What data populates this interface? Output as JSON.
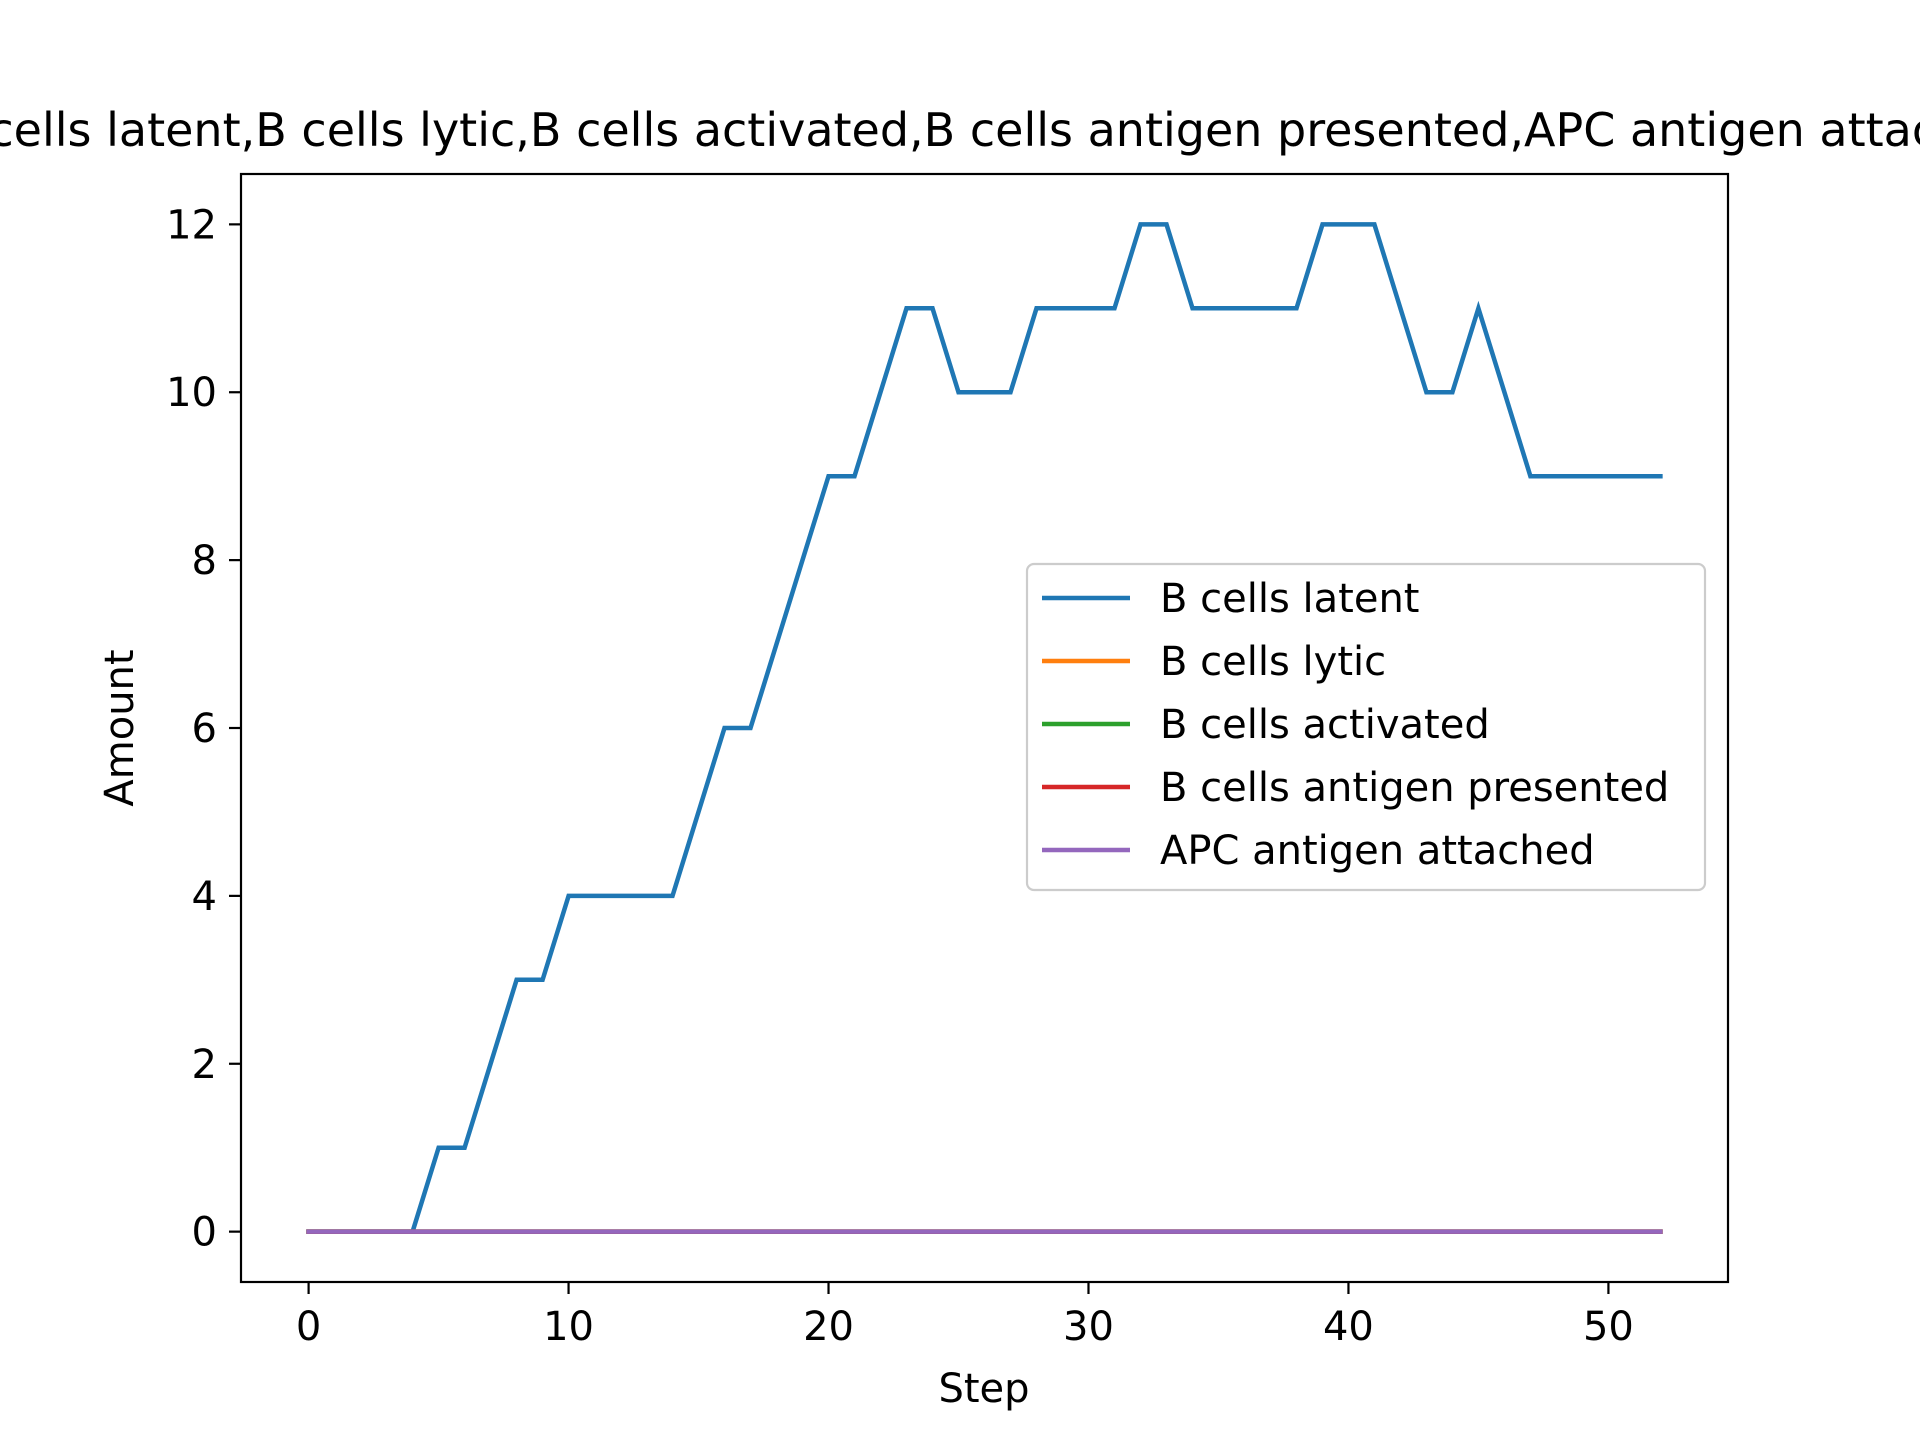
{
  "chart_data": {
    "type": "line",
    "title": "B cells latent,B cells lytic,B cells activated,B cells antigen presented,APC antigen attached",
    "xlabel": "Step",
    "ylabel": "Amount",
    "xlim": [
      -2.6,
      54.6
    ],
    "ylim": [
      -0.6,
      12.6
    ],
    "xticks": [
      0,
      10,
      20,
      30,
      40,
      50
    ],
    "yticks": [
      0,
      2,
      4,
      6,
      8,
      10,
      12
    ],
    "grid": false,
    "legend_position": "center-right",
    "x": [
      0,
      1,
      2,
      3,
      4,
      5,
      6,
      7,
      8,
      9,
      10,
      11,
      12,
      13,
      14,
      15,
      16,
      17,
      18,
      19,
      20,
      21,
      22,
      23,
      24,
      25,
      26,
      27,
      28,
      29,
      30,
      31,
      32,
      33,
      34,
      35,
      36,
      37,
      38,
      39,
      40,
      41,
      42,
      43,
      44,
      45,
      46,
      47,
      48,
      49,
      50,
      51,
      52
    ],
    "series": [
      {
        "name": "B cells latent",
        "color": "#1f77b4",
        "values": [
          0,
          0,
          0,
          0,
          0,
          1,
          1,
          2,
          3,
          3,
          4,
          4,
          4,
          4,
          4,
          5,
          6,
          6,
          7,
          8,
          9,
          9,
          10,
          11,
          11,
          10,
          10,
          10,
          11,
          11,
          11,
          11,
          12,
          12,
          11,
          11,
          11,
          11,
          11,
          12,
          12,
          12,
          11,
          10,
          10,
          11,
          10,
          9,
          9,
          9,
          9,
          9,
          9
        ]
      },
      {
        "name": "B cells lytic",
        "color": "#ff7f0e",
        "values": [
          0,
          0,
          0,
          0,
          0,
          0,
          0,
          0,
          0,
          0,
          0,
          0,
          0,
          0,
          0,
          0,
          0,
          0,
          0,
          0,
          0,
          0,
          0,
          0,
          0,
          0,
          0,
          0,
          0,
          0,
          0,
          0,
          0,
          0,
          0,
          0,
          0,
          0,
          0,
          0,
          0,
          0,
          0,
          0,
          0,
          0,
          0,
          0,
          0,
          0,
          0,
          0,
          0
        ]
      },
      {
        "name": "B cells activated",
        "color": "#2ca02c",
        "values": [
          0,
          0,
          0,
          0,
          0,
          0,
          0,
          0,
          0,
          0,
          0,
          0,
          0,
          0,
          0,
          0,
          0,
          0,
          0,
          0,
          0,
          0,
          0,
          0,
          0,
          0,
          0,
          0,
          0,
          0,
          0,
          0,
          0,
          0,
          0,
          0,
          0,
          0,
          0,
          0,
          0,
          0,
          0,
          0,
          0,
          0,
          0,
          0,
          0,
          0,
          0,
          0,
          0
        ]
      },
      {
        "name": "B cells antigen presented",
        "color": "#d62728",
        "values": [
          0,
          0,
          0,
          0,
          0,
          0,
          0,
          0,
          0,
          0,
          0,
          0,
          0,
          0,
          0,
          0,
          0,
          0,
          0,
          0,
          0,
          0,
          0,
          0,
          0,
          0,
          0,
          0,
          0,
          0,
          0,
          0,
          0,
          0,
          0,
          0,
          0,
          0,
          0,
          0,
          0,
          0,
          0,
          0,
          0,
          0,
          0,
          0,
          0,
          0,
          0,
          0,
          0
        ]
      },
      {
        "name": "APC antigen attached",
        "color": "#9467bd",
        "values": [
          0,
          0,
          0,
          0,
          0,
          0,
          0,
          0,
          0,
          0,
          0,
          0,
          0,
          0,
          0,
          0,
          0,
          0,
          0,
          0,
          0,
          0,
          0,
          0,
          0,
          0,
          0,
          0,
          0,
          0,
          0,
          0,
          0,
          0,
          0,
          0,
          0,
          0,
          0,
          0,
          0,
          0,
          0,
          0,
          0,
          0,
          0,
          0,
          0,
          0,
          0,
          0,
          0
        ]
      }
    ]
  }
}
